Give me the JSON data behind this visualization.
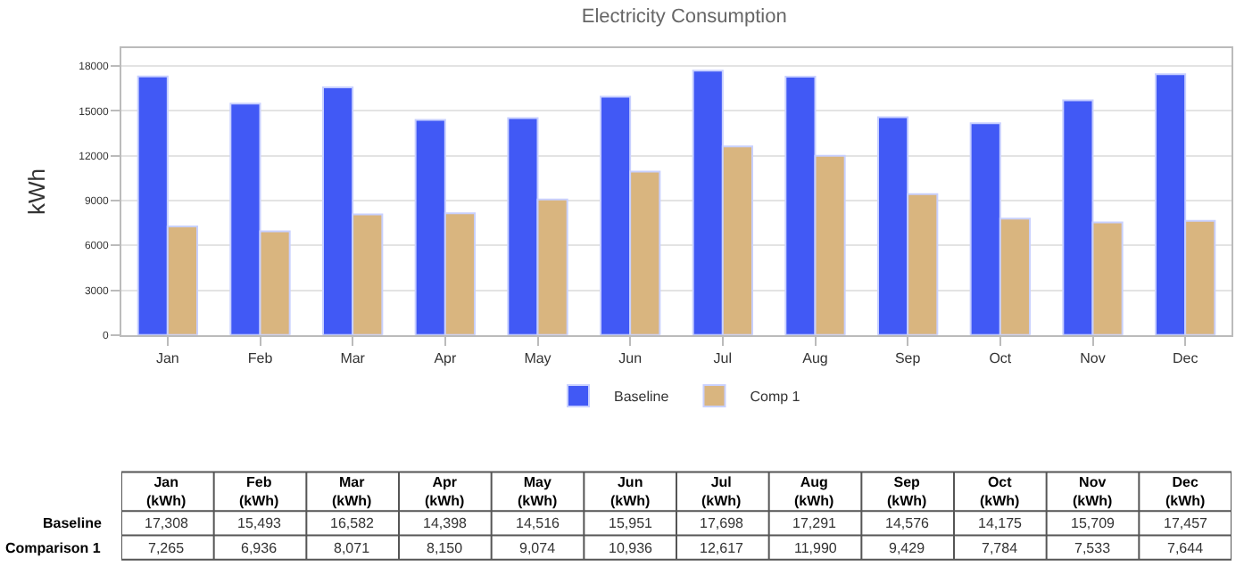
{
  "chart_data": {
    "type": "bar",
    "title": "Electricity Consumption",
    "ylabel": "kWh",
    "categories": [
      "Jan",
      "Feb",
      "Mar",
      "Apr",
      "May",
      "Jun",
      "Jul",
      "Aug",
      "Sep",
      "Oct",
      "Nov",
      "Dec"
    ],
    "series": [
      {
        "name": "Baseline",
        "color": "#4159f5",
        "values": [
          17308,
          15493,
          16582,
          14398,
          14516,
          15951,
          17698,
          17291,
          14576,
          14175,
          15709,
          17457
        ],
        "value_labels": [
          "17,308",
          "15,493",
          "16,582",
          "14,398",
          "14,516",
          "15,951",
          "17,698",
          "17,291",
          "14,576",
          "14,175",
          "15,709",
          "17,457"
        ]
      },
      {
        "name": "Comp 1",
        "color": "#d9b57f",
        "values": [
          7265,
          6936,
          8071,
          8150,
          9074,
          10936,
          12617,
          11990,
          9429,
          7784,
          7533,
          7644
        ],
        "value_labels": [
          "7,265",
          "6,936",
          "8,071",
          "8,150",
          "9,074",
          "10,936",
          "12,617",
          "11,990",
          "9,429",
          "7,784",
          "7,533",
          "7,644"
        ]
      }
    ],
    "annotations": [
      "(kWh)",
      "Baseline",
      "Comparison 1"
    ],
    "ylim": [
      0,
      19200
    ],
    "yticks": [
      0,
      3000,
      6000,
      9000,
      12000,
      15000,
      18000
    ],
    "grid": "y",
    "legend": "bottom"
  }
}
